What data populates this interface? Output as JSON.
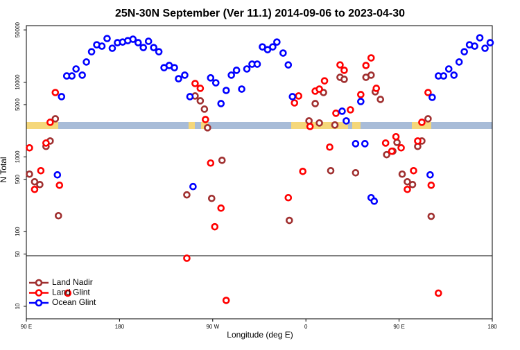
{
  "chart_data": {
    "type": "scatter",
    "title": "25N-30N September (Ver 11.1)   2014-09-06 to 2023-04-30",
    "x_label": "Longitude (deg E)",
    "y_label": "N Total",
    "log_y": true,
    "legend": "bottom-left",
    "xlim": [
      90,
      540
    ],
    "ylim": [
      6.8,
      57000
    ],
    "xticks": [
      {
        "value": 90,
        "label": "90 E"
      },
      180,
      {
        "value": 270,
        "label": "90 W"
      },
      {
        "value": 360,
        "label": "0"
      },
      {
        "value": 450,
        "label": "90 E"
      },
      {
        "value": 540,
        "label": "180"
      }
    ],
    "yticks": [
      10,
      50,
      100,
      500,
      1000,
      5000,
      10000,
      50000
    ],
    "series": [
      {
        "name": "Land Nadir",
        "color": "#a03030",
        "x": [
          93,
          98,
          103,
          109,
          113,
          118,
          121,
          245,
          253,
          258,
          262,
          265,
          269,
          279,
          344,
          363,
          369,
          373,
          377,
          384,
          388,
          393,
          397,
          408,
          418,
          423,
          427,
          432,
          438,
          444,
          448,
          453,
          458,
          463,
          468,
          472,
          478,
          481
        ],
        "values": [
          587,
          464,
          426,
          1380,
          1630,
          3230,
          163,
          310,
          6530,
          5620,
          4350,
          2450,
          278,
          899,
          141,
          3030,
          5160,
          2840,
          7260,
          653,
          2670,
          11600,
          10900,
          612,
          11600,
          12400,
          7420,
          5870,
          1070,
          1190,
          1560,
          587,
          464,
          426,
          1380,
          1630,
          3230,
          160
        ]
      },
      {
        "name": "Land Glint",
        "color": "#ff0000",
        "x": [
          93,
          98,
          104,
          109,
          113,
          118,
          122,
          130,
          245,
          253,
          258,
          263,
          268,
          272,
          278,
          283,
          343,
          349,
          353,
          357,
          364,
          369,
          373,
          378,
          383,
          389,
          393,
          397,
          403,
          413,
          418,
          423,
          428,
          437,
          443,
          447,
          452,
          458,
          464,
          468,
          472,
          478,
          481,
          488
        ],
        "values": [
          1320,
          367,
          653,
          1530,
          2900,
          7260,
          417,
          15,
          44,
          9580,
          8260,
          3160,
          826,
          116,
          206,
          12,
          284,
          5270,
          6530,
          639,
          2550,
          7580,
          8070,
          10400,
          1350,
          3830,
          17000,
          14400,
          4260,
          6810,
          16700,
          21100,
          8260,
          1530,
          1190,
          1860,
          1320,
          367,
          653,
          1630,
          2900,
          7260,
          417,
          15
        ]
      },
      {
        "name": "Ocean Glint",
        "color": "#0000ff",
        "x": [
          120,
          124,
          129,
          134,
          138,
          144,
          148,
          153,
          158,
          163,
          168,
          173,
          178,
          183,
          188,
          193,
          198,
          203,
          208,
          213,
          218,
          223,
          228,
          233,
          237,
          243,
          248,
          251,
          268,
          273,
          278,
          283,
          288,
          293,
          298,
          303,
          308,
          313,
          318,
          323,
          328,
          332,
          338,
          343,
          347,
          395,
          399,
          408,
          413,
          417,
          423,
          426,
          480,
          482,
          488,
          493,
          498,
          503,
          508,
          513,
          518,
          523,
          528,
          533,
          538
        ],
        "values": [
          574,
          6390,
          12100,
          12100,
          15000,
          12400,
          18600,
          25500,
          31600,
          30300,
          38300,
          28400,
          33700,
          34400,
          35900,
          37500,
          33700,
          29000,
          35200,
          29000,
          25500,
          15600,
          16700,
          15600,
          11100,
          12400,
          6390,
          400,
          11400,
          9790,
          5160,
          7740,
          12400,
          14400,
          8070,
          15000,
          17400,
          17400,
          29600,
          27200,
          29600,
          34400,
          24500,
          17000,
          6390,
          4080,
          3030,
          1500,
          5500,
          1500,
          284,
          255,
          574,
          6250,
          12100,
          12100,
          15000,
          12400,
          18600,
          25500,
          31600,
          30300,
          39200,
          28400,
          33700
        ]
      }
    ]
  }
}
